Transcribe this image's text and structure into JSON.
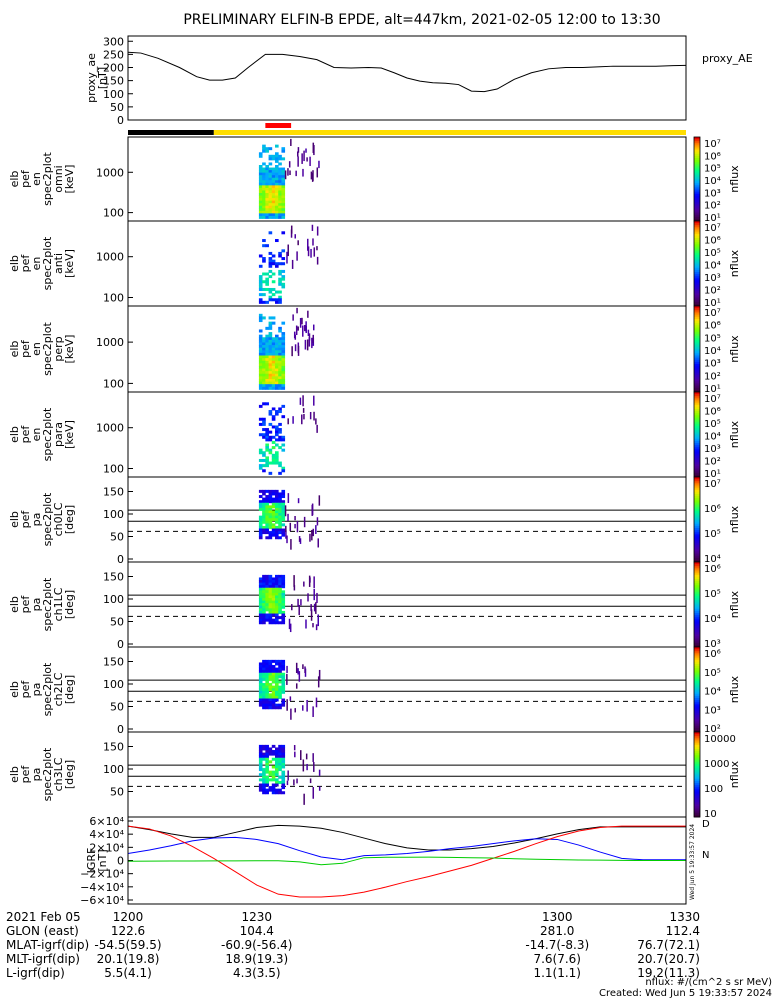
{
  "title": "PRELIMINARY ELFIN-B EPDE, alt=447km, 2021-02-05 12:00 to 13:30",
  "chart_data": {
    "type": "spectrogram",
    "title": "PRELIMINARY ELFIN-B EPDE, alt=447km, 2021-02-05 12:00 to 13:30",
    "x_range_minutes": [
      1200,
      1330
    ],
    "panels": [
      {
        "id": "proxy_ae",
        "type": "line",
        "ylabel_lines": [
          "proxy_ae",
          "[nT]"
        ],
        "right_label": "proxy_AE",
        "yticks": [
          "300",
          "250",
          "200",
          "150",
          "100",
          "50",
          "0"
        ],
        "ylim": [
          0,
          320
        ],
        "x": [
          1200,
          1203,
          1207,
          1212,
          1216,
          1219,
          1222,
          1225,
          1228,
          1232,
          1236,
          1240,
          1244,
          1248,
          1252,
          1256,
          1259,
          1262,
          1265,
          1268,
          1271,
          1274,
          1277,
          1280,
          1283,
          1286,
          1290,
          1294,
          1298,
          1302,
          1306,
          1310,
          1313,
          1316,
          1320,
          1323,
          1327,
          1330
        ],
        "y": [
          258,
          255,
          235,
          200,
          165,
          152,
          152,
          160,
          200,
          250,
          250,
          242,
          230,
          200,
          198,
          200,
          198,
          180,
          160,
          148,
          142,
          140,
          135,
          110,
          108,
          118,
          155,
          180,
          195,
          200,
          200,
          203,
          205,
          205,
          205,
          205,
          207,
          208
        ]
      },
      {
        "id": "en_omni",
        "type": "energy",
        "ylabel_lines": [
          "elb",
          "pef",
          "en",
          "spec2plot",
          "omni",
          "[keV]"
        ],
        "yticks": [
          "1000",
          "100"
        ],
        "colorbar_ticks": [
          "10⁷",
          "10⁶",
          "10⁵",
          "10⁴",
          "10³",
          "10²",
          "10¹"
        ],
        "colorbar_label": "nflux",
        "intensity_scale": 1.0
      },
      {
        "id": "en_anti",
        "type": "energy",
        "ylabel_lines": [
          "elb",
          "pef",
          "en",
          "spec2plot",
          "anti",
          "[keV]"
        ],
        "yticks": [
          "1000",
          "100"
        ],
        "colorbar_ticks": [
          "10⁷",
          "10⁶",
          "10⁵",
          "10⁴",
          "10³",
          "10²",
          "10¹"
        ],
        "colorbar_label": "nflux",
        "intensity_scale": 0.35
      },
      {
        "id": "en_perp",
        "type": "energy",
        "ylabel_lines": [
          "elb",
          "pef",
          "en",
          "spec2plot",
          "perp",
          "[keV]"
        ],
        "yticks": [
          "1000",
          "100"
        ],
        "colorbar_ticks": [
          "10⁷",
          "10⁶",
          "10⁵",
          "10⁴",
          "10³",
          "10²",
          "10¹"
        ],
        "colorbar_label": "nflux",
        "intensity_scale": 1.0
      },
      {
        "id": "en_para",
        "type": "energy",
        "ylabel_lines": [
          "elb",
          "pef",
          "en",
          "spec2plot",
          "para",
          "[keV]"
        ],
        "yticks": [
          "1000",
          "100"
        ],
        "colorbar_ticks": [
          "10⁷",
          "10⁶",
          "10⁵",
          "10⁴",
          "10³",
          "10²",
          "10¹"
        ],
        "colorbar_label": "nflux",
        "intensity_scale": 0.4
      },
      {
        "id": "pa_ch0",
        "type": "pitch",
        "ylabel_lines": [
          "elb",
          "pef",
          "pa",
          "spec2plot",
          "ch0LC",
          "[deg]"
        ],
        "yticks": [
          "150",
          "100",
          "50",
          "0"
        ],
        "colorbar_ticks": [
          "10⁷",
          "10⁶",
          "10⁵",
          "10⁴"
        ],
        "colorbar_label": "nflux",
        "intensity_scale": 0.9
      },
      {
        "id": "pa_ch1",
        "type": "pitch",
        "ylabel_lines": [
          "elb",
          "pef",
          "pa",
          "spec2plot",
          "ch1LC",
          "[deg]"
        ],
        "yticks": [
          "150",
          "100",
          "50",
          "0"
        ],
        "colorbar_ticks": [
          "10⁶",
          "10⁵",
          "10⁴",
          "10³"
        ],
        "colorbar_label": "nflux",
        "intensity_scale": 1.0
      },
      {
        "id": "pa_ch2",
        "type": "pitch",
        "ylabel_lines": [
          "elb",
          "pef",
          "pa",
          "spec2plot",
          "ch2LC",
          "[deg]"
        ],
        "yticks": [
          "150",
          "100",
          "50",
          "0"
        ],
        "colorbar_ticks": [
          "10⁶",
          "10⁵",
          "10⁴",
          "10³",
          "10²"
        ],
        "colorbar_label": "nflux",
        "intensity_scale": 0.9
      },
      {
        "id": "pa_ch3",
        "type": "pitch",
        "ylabel_lines": [
          "elb",
          "pef",
          "pa",
          "spec2plot",
          "ch3LC",
          "[deg]"
        ],
        "yticks": [
          "150",
          "100",
          "50"
        ],
        "colorbar_ticks": [
          "10000",
          "1000",
          "100",
          "10"
        ],
        "colorbar_label": "nflux",
        "intensity_scale": 0.8
      },
      {
        "id": "igrf",
        "type": "line",
        "ylabel_lines": [
          "IGRF",
          "[nT]"
        ],
        "yticks": [
          "6×10⁴",
          "4×10⁴",
          "2×10⁴",
          "0",
          "−2×10⁴",
          "−4×10⁴",
          "−6×10⁴"
        ],
        "ylim": [
          -62000,
          62000
        ],
        "right_labels": [
          "D",
          "N"
        ],
        "x": [
          1200,
          1205,
          1210,
          1215,
          1220,
          1225,
          1230,
          1235,
          1240,
          1245,
          1250,
          1255,
          1260,
          1265,
          1270,
          1275,
          1280,
          1285,
          1290,
          1295,
          1300,
          1305,
          1310,
          1315,
          1320,
          1325,
          1330
        ],
        "series": [
          {
            "color": "#000000",
            "y": [
              49000,
              44000,
              38000,
              33000,
              33000,
              40000,
              47000,
              50000,
              49000,
              46000,
              40000,
              32000,
              24000,
              18000,
              15000,
              15000,
              17000,
              20000,
              25000,
              31000,
              38000,
              44000,
              48000,
              48000,
              48000,
              48000,
              48000
            ]
          },
          {
            "color": "#0000ff",
            "y": [
              10000,
              15000,
              21000,
              28000,
              32000,
              33000,
              30000,
              24000,
              14000,
              5000,
              1000,
              7000,
              8000,
              10000,
              13000,
              17000,
              20000,
              24000,
              28000,
              31000,
              30000,
              22000,
              12000,
              3000,
              1000,
              1000,
              1000
            ]
          },
          {
            "color": "#ff0000",
            "y": [
              49000,
              45000,
              35000,
              20000,
              3000,
              -16000,
              -35000,
              -48000,
              -52000,
              -52000,
              -50000,
              -45000,
              -38000,
              -30000,
              -23000,
              -15000,
              -7000,
              3000,
              13000,
              24000,
              34000,
              42000,
              47000,
              49000,
              49000,
              49000,
              49000
            ]
          },
          {
            "color": "#00cc00",
            "y": [
              -1000,
              -900,
              -800,
              -700,
              -600,
              -500,
              -400,
              -300,
              -2000,
              -6000,
              -4000,
              4000,
              4600,
              4700,
              4800,
              4500,
              4000,
              3500,
              2500,
              1800,
              1200,
              800,
              500,
              200,
              0,
              0,
              0
            ]
          }
        ]
      }
    ],
    "event_time_range": [
      1226,
      1254
    ],
    "red_segment_range": [
      1232,
      1238
    ],
    "status_bar": [
      {
        "from": 1200,
        "to": 1220,
        "color": "#000000"
      },
      {
        "from": 1220,
        "to": 1330,
        "color": "#ffdd00"
      }
    ]
  },
  "footer": {
    "row_labels": [
      "2021 Feb 05",
      "GLON (east)",
      "MLAT-igrf(dip)",
      "MLT-igrf(dip)",
      "L-igrf(dip)"
    ],
    "columns": [
      {
        "t": 1200,
        "values": [
          "1200",
          "122.6",
          "-54.5(59.5)",
          "20.1(19.8)",
          "5.5(4.1)"
        ]
      },
      {
        "t": 1230,
        "values": [
          "1230",
          "104.4",
          "-60.9(-56.4)",
          "18.9(19.3)",
          "4.3(3.5)"
        ]
      },
      {
        "t": 1300,
        "values": [
          "1300",
          "281.0",
          "-14.7(-8.3)",
          "7.6(7.6)",
          "1.1(1.1)"
        ]
      },
      {
        "t": 1330,
        "values": [
          "1330",
          "112.4",
          "76.7(72.1)",
          "20.7(20.7)",
          "19.2(11.3)"
        ]
      }
    ],
    "units_note": "nflux: #/(cm^2 s sr MeV)",
    "created": "Created: Wed Jun  5 19:33:57 2024",
    "side_stamp": "Wed Jun  5 19:33:57 2024"
  }
}
